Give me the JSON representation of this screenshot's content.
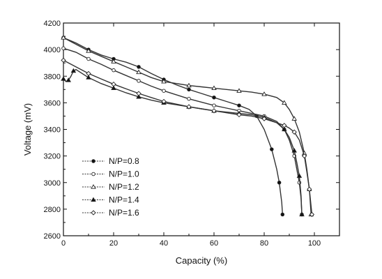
{
  "chart_data": {
    "type": "line",
    "title": "",
    "xlabel": "Capacity (%)",
    "ylabel": "Voltage (mV)",
    "xlim": [
      0,
      110
    ],
    "ylim": [
      2600,
      4200
    ],
    "xticks": [
      0,
      20,
      40,
      60,
      80,
      100
    ],
    "yticks": [
      2600,
      2800,
      3000,
      3200,
      3400,
      3600,
      3800,
      4000,
      4200
    ],
    "grid": false,
    "legend_position": "bottom-left",
    "series": [
      {
        "name": "N/P=0.8",
        "marker": "filled-circle",
        "points": [
          [
            0,
            4090
          ],
          [
            5,
            4050
          ],
          [
            10,
            4000
          ],
          [
            15,
            3960
          ],
          [
            20,
            3930
          ],
          [
            25,
            3905
          ],
          [
            30,
            3870
          ],
          [
            35,
            3820
          ],
          [
            40,
            3775
          ],
          [
            45,
            3735
          ],
          [
            50,
            3700
          ],
          [
            55,
            3670
          ],
          [
            60,
            3640
          ],
          [
            65,
            3610
          ],
          [
            70,
            3580
          ],
          [
            74,
            3550
          ],
          [
            77,
            3500
          ],
          [
            80,
            3400
          ],
          [
            83,
            3250
          ],
          [
            85,
            3100
          ],
          [
            86,
            3000
          ],
          [
            87,
            2850
          ],
          [
            87.3,
            2760
          ]
        ]
      },
      {
        "name": "N/P=1.0",
        "marker": "open-circle",
        "points": [
          [
            0,
            4010
          ],
          [
            5,
            3980
          ],
          [
            10,
            3930
          ],
          [
            15,
            3890
          ],
          [
            20,
            3845
          ],
          [
            25,
            3805
          ],
          [
            30,
            3765
          ],
          [
            35,
            3725
          ],
          [
            40,
            3690
          ],
          [
            45,
            3660
          ],
          [
            50,
            3630
          ],
          [
            55,
            3605
          ],
          [
            60,
            3580
          ],
          [
            65,
            3560
          ],
          [
            70,
            3540
          ],
          [
            75,
            3520
          ],
          [
            80,
            3500
          ],
          [
            85,
            3460
          ],
          [
            88,
            3400
          ],
          [
            90,
            3320
          ],
          [
            92,
            3200
          ],
          [
            93,
            3100
          ],
          [
            94,
            3000
          ],
          [
            94.7,
            2880
          ],
          [
            95,
            2760
          ]
        ]
      },
      {
        "name": "N/P=1.2",
        "marker": "open-triangle",
        "points": [
          [
            0,
            4090
          ],
          [
            5,
            4040
          ],
          [
            10,
            3990
          ],
          [
            15,
            3950
          ],
          [
            20,
            3910
          ],
          [
            25,
            3870
          ],
          [
            30,
            3830
          ],
          [
            35,
            3790
          ],
          [
            40,
            3760
          ],
          [
            45,
            3745
          ],
          [
            50,
            3730
          ],
          [
            55,
            3720
          ],
          [
            60,
            3710
          ],
          [
            65,
            3700
          ],
          [
            70,
            3690
          ],
          [
            75,
            3680
          ],
          [
            80,
            3665
          ],
          [
            85,
            3640
          ],
          [
            88,
            3600
          ],
          [
            90,
            3550
          ],
          [
            92,
            3480
          ],
          [
            94,
            3380
          ],
          [
            96,
            3220
          ],
          [
            97,
            3100
          ],
          [
            98,
            2950
          ],
          [
            98.7,
            2760
          ]
        ]
      },
      {
        "name": "N/P=1.4",
        "marker": "filled-triangle",
        "points": [
          [
            0,
            3780
          ],
          [
            1,
            3760
          ],
          [
            2,
            3770
          ],
          [
            3,
            3800
          ],
          [
            4,
            3840
          ],
          [
            5,
            3850
          ],
          [
            10,
            3790
          ],
          [
            15,
            3745
          ],
          [
            20,
            3710
          ],
          [
            25,
            3675
          ],
          [
            30,
            3645
          ],
          [
            35,
            3620
          ],
          [
            40,
            3600
          ],
          [
            45,
            3585
          ],
          [
            50,
            3570
          ],
          [
            55,
            3555
          ],
          [
            60,
            3540
          ],
          [
            65,
            3530
          ],
          [
            70,
            3520
          ],
          [
            75,
            3510
          ],
          [
            80,
            3490
          ],
          [
            85,
            3450
          ],
          [
            88,
            3400
          ],
          [
            90,
            3340
          ],
          [
            92,
            3240
          ],
          [
            93,
            3150
          ],
          [
            94,
            3050
          ],
          [
            94.7,
            2900
          ],
          [
            95,
            2760
          ]
        ]
      },
      {
        "name": "N/P=1.6",
        "marker": "open-diamond",
        "points": [
          [
            0,
            3920
          ],
          [
            5,
            3870
          ],
          [
            10,
            3820
          ],
          [
            15,
            3780
          ],
          [
            20,
            3740
          ],
          [
            25,
            3705
          ],
          [
            30,
            3670
          ],
          [
            35,
            3640
          ],
          [
            40,
            3610
          ],
          [
            45,
            3590
          ],
          [
            50,
            3570
          ],
          [
            55,
            3555
          ],
          [
            60,
            3540
          ],
          [
            65,
            3525
          ],
          [
            70,
            3510
          ],
          [
            75,
            3500
          ],
          [
            80,
            3480
          ],
          [
            85,
            3450
          ],
          [
            88,
            3430
          ],
          [
            90,
            3410
          ],
          [
            92,
            3380
          ],
          [
            94,
            3320
          ],
          [
            96,
            3200
          ],
          [
            97,
            3080
          ],
          [
            98,
            2950
          ],
          [
            98.8,
            2800
          ],
          [
            99,
            2760
          ]
        ]
      }
    ]
  }
}
